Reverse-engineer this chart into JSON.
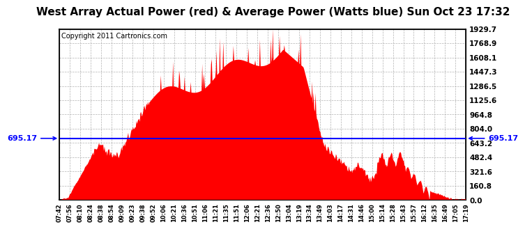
{
  "title": "West Array Actual Power (red) & Average Power (Watts blue) Sun Oct 23 17:32",
  "copyright": "Copyright 2011 Cartronics.com",
  "average_value": 695.17,
  "yticks": [
    0.0,
    160.8,
    321.6,
    482.4,
    643.2,
    804.0,
    964.8,
    1125.6,
    1286.5,
    1447.3,
    1608.1,
    1768.9,
    1929.7
  ],
  "ymax": 1929.7,
  "ymin": 0.0,
  "xtick_labels": [
    "07:42",
    "07:56",
    "08:10",
    "08:24",
    "08:38",
    "08:54",
    "09:09",
    "09:23",
    "09:38",
    "09:52",
    "10:06",
    "10:21",
    "10:36",
    "10:51",
    "11:06",
    "11:21",
    "11:35",
    "11:51",
    "12:06",
    "12:21",
    "12:36",
    "12:50",
    "13:04",
    "13:19",
    "13:34",
    "13:49",
    "14:03",
    "14:17",
    "14:31",
    "14:46",
    "15:00",
    "15:14",
    "15:28",
    "15:43",
    "15:57",
    "16:12",
    "16:35",
    "16:49",
    "17:05",
    "17:19"
  ],
  "fill_color": "#FF0000",
  "line_color": "#0000FF",
  "background_color": "#FFFFFF",
  "grid_color": "#AAAAAA",
  "title_fontsize": 11,
  "copyright_fontsize": 7,
  "avg_label_color": "#0000FF",
  "avg_label_fontsize": 8
}
